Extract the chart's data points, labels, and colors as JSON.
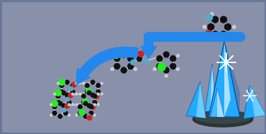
{
  "bg_color": "#8890aa",
  "border_color": "#667788",
  "arrow_color": "#2288ee",
  "crystal_colors": {
    "main": "#22aaff",
    "light": "#88ddff",
    "lightest": "#cceeff",
    "dark": "#0055aa",
    "mid": "#44bbff",
    "base": "#2a3535",
    "base2": "#3a4545"
  },
  "atom_colors": {
    "C": "#111111",
    "Cl": "#22ee22",
    "O": "#cc2222",
    "N": "#55aacc",
    "H": "#cccccc"
  },
  "figsize": [
    3.76,
    1.89
  ],
  "dpi": 100
}
